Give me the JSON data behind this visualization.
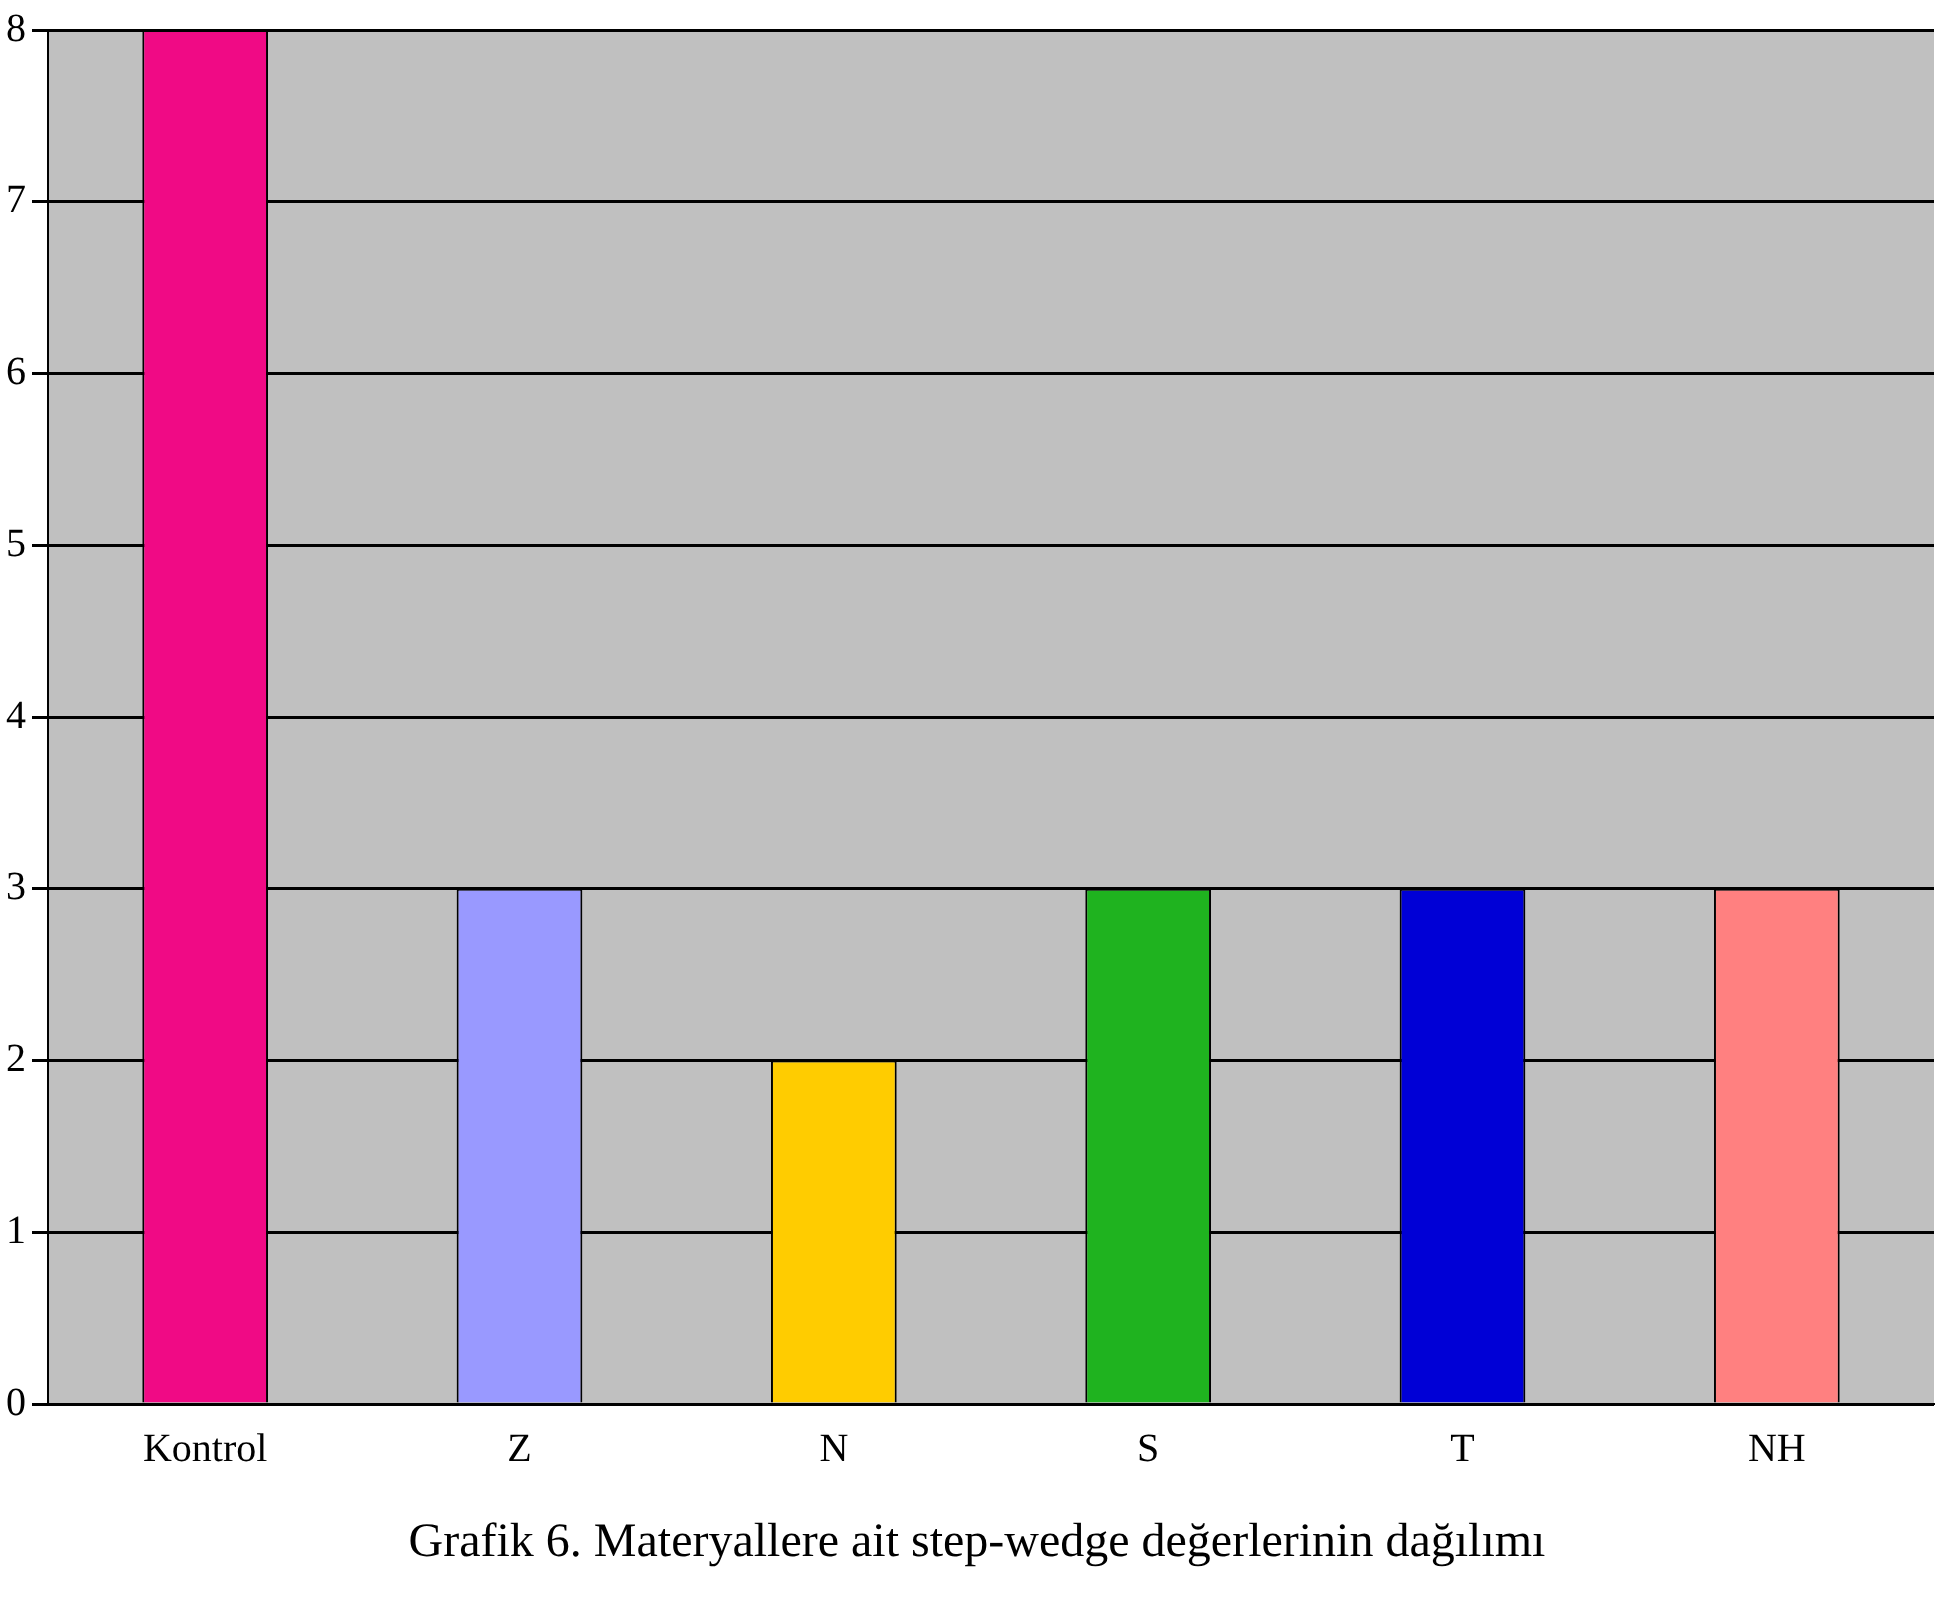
{
  "chart_data": {
    "type": "bar",
    "title": "Grafik 6. Materyallere ait step-wedge değerlerinin dağılımı",
    "categories": [
      "Kontrol",
      "Z",
      "N",
      "S",
      "T",
      "NH"
    ],
    "values": [
      8,
      3,
      2,
      3,
      3,
      3
    ],
    "colors": [
      "#f00a85",
      "#9999ff",
      "#ffcc00",
      "#1fb31f",
      "#0000d6",
      "#ff8080"
    ],
    "ylim": [
      0,
      8
    ],
    "yticks": [
      0,
      1,
      2,
      3,
      4,
      5,
      6,
      7,
      8
    ],
    "grid": "y",
    "legend": false
  }
}
